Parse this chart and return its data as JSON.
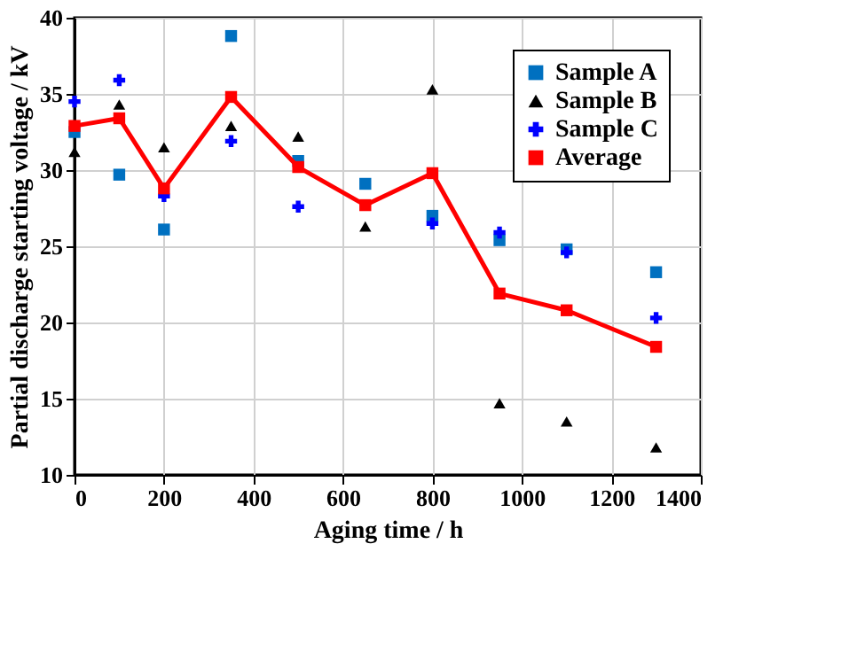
{
  "chart_data": {
    "type": "scatter",
    "xlabel": "Aging time / h",
    "ylabel": "Partial discharge starting voltage  / kV",
    "x": [
      0,
      100,
      200,
      350,
      500,
      650,
      800,
      950,
      1100,
      1300
    ],
    "series": [
      {
        "name": "Sample A",
        "color": "#0070c0",
        "marker": "square",
        "values": [
          32.5,
          29.7,
          26.1,
          38.8,
          30.6,
          29.1,
          27.0,
          25.4,
          24.8,
          23.3
        ]
      },
      {
        "name": "Sample B",
        "color": "#000000",
        "marker": "triangle",
        "values": [
          31.2,
          34.3,
          31.5,
          32.9,
          32.2,
          26.3,
          35.3,
          14.7,
          13.5,
          11.8
        ]
      },
      {
        "name": "Sample C",
        "color": "#0000ff",
        "marker": "cross",
        "values": [
          34.5,
          35.9,
          28.3,
          31.9,
          27.6,
          null,
          26.5,
          25.9,
          24.6,
          20.3
        ]
      },
      {
        "name": "Average",
        "color": "#ff0000",
        "type": "line",
        "marker": "square",
        "line_style": "solid",
        "values": [
          32.9,
          33.4,
          28.8,
          34.8,
          30.2,
          27.7,
          29.8,
          21.9,
          20.8,
          18.4
        ]
      }
    ],
    "xlim": [
      0,
      1400
    ],
    "xticks": [
      0,
      200,
      400,
      600,
      800,
      1000,
      1200,
      1400
    ],
    "ylim": [
      10,
      40
    ],
    "yticks": [
      10,
      15,
      20,
      25,
      30,
      35,
      40
    ],
    "grid": true,
    "legend": "top right"
  }
}
